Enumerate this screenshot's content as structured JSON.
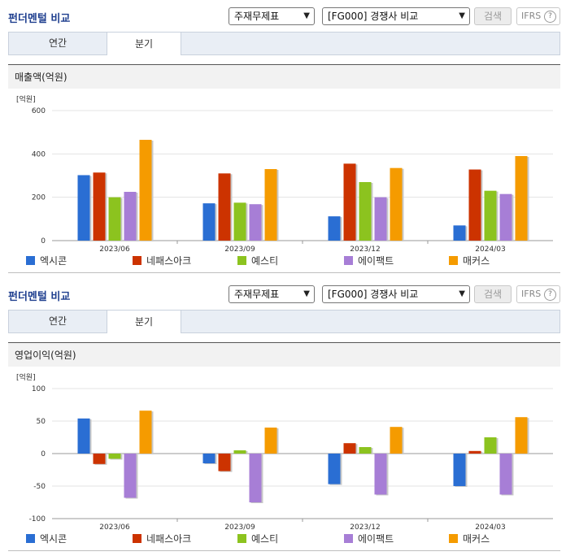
{
  "colors": {
    "엑시콘": "#2a6ed3",
    "네패스아크": "#cc3300",
    "예스티": "#8cc31f",
    "에이팩트": "#a77ed6",
    "매커스": "#f59b00"
  },
  "sections": [
    {
      "title": "펀더멘털 비교",
      "select1": "주재무제표",
      "select2": "[FG000] 경쟁사 비교",
      "search_label": "검색",
      "ifrs_label": "IFRS",
      "ifrs_help_icon": "?",
      "tabs": [
        "연간",
        "분기"
      ],
      "active_tab": "분기",
      "metric_title": "매출액(억원)"
    },
    {
      "title": "펀더멘털 비교",
      "select1": "주재무제표",
      "select2": "[FG000] 경쟁사 비교",
      "search_label": "검색",
      "ifrs_label": "IFRS",
      "ifrs_help_icon": "?",
      "tabs": [
        "연간",
        "분기"
      ],
      "active_tab": "분기",
      "metric_title": "영업이익(억원)"
    }
  ],
  "chart_data": [
    {
      "type": "bar",
      "unit": "[억원]",
      "categories": [
        "2023/06",
        "2023/09",
        "2023/12",
        "2024/03"
      ],
      "ylim": [
        0,
        600
      ],
      "yticks": [
        0,
        200,
        400,
        600
      ],
      "grid": true,
      "legend_position": "bottom",
      "series": [
        {
          "name": "엑시콘",
          "values": [
            302,
            172,
            112,
            70
          ]
        },
        {
          "name": "네패스아크",
          "values": [
            314,
            310,
            355,
            328
          ]
        },
        {
          "name": "예스티",
          "values": [
            200,
            175,
            270,
            230
          ]
        },
        {
          "name": "에이팩트",
          "values": [
            225,
            168,
            200,
            215
          ]
        },
        {
          "name": "매커스",
          "values": [
            465,
            330,
            335,
            390
          ]
        }
      ]
    },
    {
      "type": "bar",
      "unit": "[억원]",
      "categories": [
        "2023/06",
        "2023/09",
        "2023/12",
        "2024/03"
      ],
      "ylim": [
        -100,
        100
      ],
      "yticks": [
        -100,
        -50,
        0,
        50,
        100
      ],
      "grid": true,
      "legend_position": "bottom",
      "series": [
        {
          "name": "엑시콘",
          "values": [
            54,
            -15,
            -47,
            -50
          ]
        },
        {
          "name": "네패스아크",
          "values": [
            -16,
            -27,
            16,
            4
          ]
        },
        {
          "name": "예스티",
          "values": [
            -8,
            5,
            10,
            25
          ]
        },
        {
          "name": "에이팩트",
          "values": [
            -68,
            -75,
            -63,
            -63
          ]
        },
        {
          "name": "매커스",
          "values": [
            66,
            40,
            41,
            56
          ]
        }
      ]
    }
  ]
}
